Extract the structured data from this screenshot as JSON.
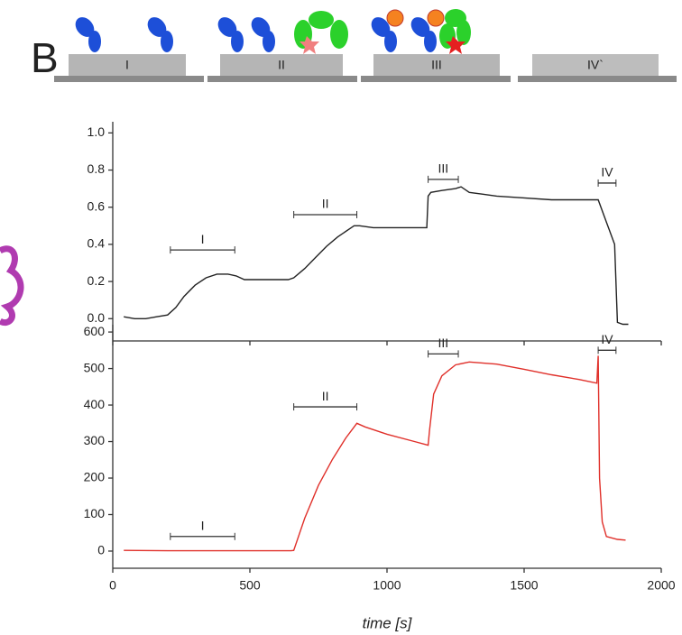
{
  "panel_label": "B",
  "schematic": {
    "labels": [
      "I",
      "II",
      "III",
      "IV`"
    ]
  },
  "chart_data": [
    {
      "type": "line",
      "color": "#222222",
      "x": [
        40,
        80,
        120,
        160,
        200,
        230,
        260,
        300,
        340,
        380,
        420,
        450,
        480,
        520,
        560,
        600,
        640,
        660,
        700,
        740,
        780,
        820,
        860,
        880,
        900,
        950,
        1000,
        1050,
        1100,
        1145,
        1150,
        1160,
        1200,
        1250,
        1270,
        1300,
        1350,
        1400,
        1500,
        1600,
        1700,
        1770,
        1800,
        1830,
        1840,
        1860,
        1880
      ],
      "values": [
        0.01,
        0.0,
        0.0,
        0.01,
        0.02,
        0.06,
        0.12,
        0.18,
        0.22,
        0.24,
        0.24,
        0.23,
        0.21,
        0.21,
        0.21,
        0.21,
        0.21,
        0.22,
        0.27,
        0.33,
        0.39,
        0.44,
        0.48,
        0.5,
        0.5,
        0.49,
        0.49,
        0.49,
        0.49,
        0.49,
        0.66,
        0.68,
        0.69,
        0.7,
        0.71,
        0.68,
        0.67,
        0.66,
        0.65,
        0.64,
        0.64,
        0.64,
        0.52,
        0.4,
        -0.02,
        -0.03,
        -0.03
      ],
      "xlim": [
        0,
        2000
      ],
      "ylim": [
        -0.12,
        1.06
      ],
      "yticks": [
        {
          "value": 0,
          "label": "0.0"
        },
        {
          "value": 0.2,
          "label": "0.2"
        },
        {
          "value": 0.4,
          "label": "0.4"
        },
        {
          "value": 0.6,
          "label": "0.6"
        },
        {
          "value": 0.8,
          "label": "0.8"
        },
        {
          "value": 1,
          "label": "1.0"
        }
      ],
      "annotations": [
        {
          "label": "I",
          "x": [
            210,
            445
          ],
          "y": 0.37
        },
        {
          "label": "II",
          "x": [
            660,
            890
          ],
          "y": 0.56
        },
        {
          "label": "III",
          "x": [
            1150,
            1260
          ],
          "y": 0.75
        },
        {
          "label": "IV",
          "x": [
            1770,
            1835
          ],
          "y": 0.73
        }
      ]
    },
    {
      "type": "line",
      "color": "#e0302a",
      "x": [
        40,
        200,
        400,
        600,
        650,
        660,
        700,
        750,
        800,
        850,
        890,
        920,
        1000,
        1100,
        1150,
        1155,
        1170,
        1200,
        1250,
        1300,
        1400,
        1500,
        1600,
        1700,
        1765,
        1770,
        1775,
        1785,
        1800,
        1840,
        1870
      ],
      "values": [
        2,
        1,
        1,
        1,
        1,
        2,
        90,
        180,
        250,
        310,
        350,
        340,
        320,
        300,
        290,
        330,
        430,
        480,
        510,
        518,
        512,
        498,
        483,
        470,
        460,
        535,
        200,
        80,
        40,
        32,
        30
      ],
      "xlim": [
        0,
        2000
      ],
      "ylim": [
        -47,
        620
      ],
      "xticks": [
        0,
        500,
        1000,
        1500,
        2000
      ],
      "yticks": [
        0,
        100,
        200,
        300,
        400,
        500,
        600
      ],
      "x_label": "time [s]",
      "annotations": [
        {
          "label": "I",
          "x": [
            210,
            445
          ],
          "y": 40
        },
        {
          "label": "II",
          "x": [
            660,
            890
          ],
          "y": 395
        },
        {
          "label": "III",
          "x": [
            1150,
            1260
          ],
          "y": 540
        },
        {
          "label": "IV",
          "x": [
            1770,
            1835
          ],
          "y": 550
        }
      ]
    }
  ]
}
